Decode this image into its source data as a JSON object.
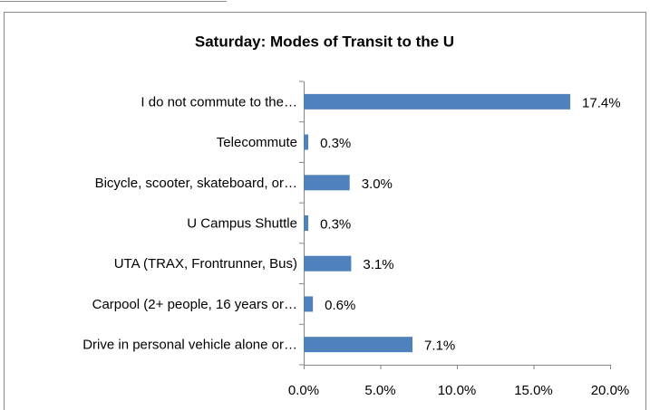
{
  "chart_data": {
    "type": "hbar",
    "title": "Saturday: Modes of Transit to the U",
    "categories": [
      "I do not commute to the…",
      "Telecommute",
      "Bicycle, scooter, skateboard, or…",
      "U Campus Shuttle",
      "UTA (TRAX, Frontrunner, Bus)",
      "Carpool (2+ people, 16 years or…",
      "Drive in personal vehicle alone or…"
    ],
    "values": [
      17.4,
      0.3,
      3.0,
      0.3,
      3.1,
      0.6,
      7.1
    ],
    "value_labels": [
      "17.4%",
      "0.3%",
      "3.0%",
      "0.3%",
      "3.1%",
      "0.6%",
      "7.1%"
    ],
    "color": "#4f81bd",
    "xlim": [
      0,
      20
    ],
    "xticks": [
      {
        "value": 0,
        "label": "0.0%"
      },
      {
        "value": 5,
        "label": "5.0%"
      },
      {
        "value": 10,
        "label": "10.0%"
      },
      {
        "value": 15,
        "label": "15.0%"
      },
      {
        "value": 20,
        "label": "20.0%"
      }
    ],
    "grid": false
  }
}
